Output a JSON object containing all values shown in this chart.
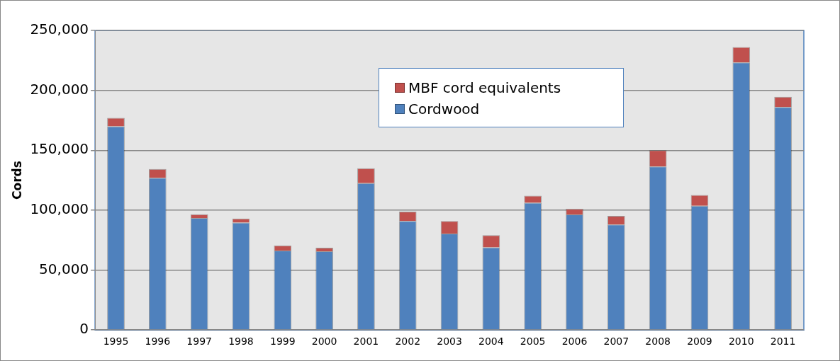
{
  "chart_data": {
    "type": "bar",
    "stacked": true,
    "ylabel": "Cords",
    "legend": "top",
    "grid": "y",
    "categories": [
      "1995",
      "1996",
      "1997",
      "1998",
      "1999",
      "2000",
      "2001",
      "2002",
      "2003",
      "2004",
      "2005",
      "2006",
      "2007",
      "2008",
      "2009",
      "2010",
      "2011"
    ],
    "series": [
      {
        "name": "Cordwood",
        "color": "#4f81bd",
        "values": [
          170000,
          127000,
          93400,
          89600,
          66300,
          65700,
          122500,
          91000,
          80500,
          68900,
          106200,
          96400,
          88000,
          136500,
          103600,
          223300,
          186100
        ]
      },
      {
        "name": "MBF cord equivalents",
        "color": "#c0504d",
        "values": [
          7000,
          7400,
          3200,
          3400,
          4200,
          3000,
          12400,
          7800,
          10500,
          10200,
          5800,
          4800,
          7200,
          13500,
          9000,
          12800,
          8500
        ]
      }
    ],
    "ylim": [
      0,
      250000
    ],
    "yticks": [
      {
        "value": 0,
        "label": "0"
      },
      {
        "value": 50000,
        "label": "50,000"
      },
      {
        "value": 100000,
        "label": "100,000"
      },
      {
        "value": 150000,
        "label": "150,000"
      },
      {
        "value": 200000,
        "label": "200,000"
      },
      {
        "value": 250000,
        "label": "250,000"
      }
    ]
  }
}
